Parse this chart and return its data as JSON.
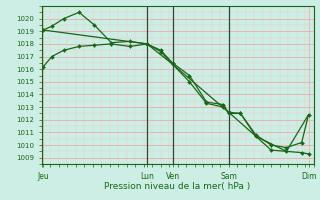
{
  "xlabel": "Pression niveau de la mer( hPa )",
  "background_color": "#cceee4",
  "grid_major_color": "#f0a0a0",
  "grid_minor_color": "#f0c8c8",
  "line_color": "#1a6618",
  "separator_color": "#334433",
  "ylim": [
    1008.5,
    1021.0
  ],
  "xlim": [
    0,
    8.0
  ],
  "yticks": [
    1009,
    1010,
    1011,
    1012,
    1013,
    1014,
    1015,
    1016,
    1017,
    1018,
    1019,
    1020
  ],
  "xtick_positions": [
    0.05,
    3.1,
    3.85,
    5.5,
    7.85
  ],
  "xtick_labels": [
    "Jeu",
    "Lun",
    "Ven",
    "Sam",
    "Dim"
  ],
  "vlines": [
    3.1,
    3.85,
    5.5
  ],
  "line1_x": [
    0.05,
    0.3,
    0.65,
    1.1,
    1.55,
    2.05,
    2.6,
    3.1,
    3.5,
    3.85,
    4.35,
    4.85,
    5.35,
    5.5,
    5.85,
    6.3,
    6.75,
    7.2,
    7.65,
    7.85
  ],
  "line1_y": [
    1019.1,
    1019.4,
    1020.0,
    1020.5,
    1019.5,
    1018.1,
    1018.2,
    1018.0,
    1017.4,
    1016.4,
    1015.0,
    1013.3,
    1013.0,
    1012.6,
    1012.5,
    1010.7,
    1009.6,
    1009.5,
    1009.4,
    1009.3
  ],
  "line2_x": [
    0.05,
    0.3,
    0.65,
    1.1,
    1.55,
    2.05,
    2.6,
    3.1,
    3.5,
    3.85,
    4.35,
    4.85,
    5.35,
    5.5,
    5.85,
    6.3,
    6.75,
    7.2,
    7.65,
    7.85
  ],
  "line2_y": [
    1016.2,
    1017.0,
    1017.5,
    1017.8,
    1017.9,
    1018.0,
    1017.8,
    1018.0,
    1017.5,
    1016.5,
    1015.5,
    1013.4,
    1013.2,
    1012.5,
    1012.5,
    1010.8,
    1010.0,
    1009.8,
    1010.2,
    1012.4
  ],
  "line3_x": [
    0.05,
    3.1,
    3.85,
    5.5,
    6.3,
    7.2,
    7.85
  ],
  "line3_y": [
    1019.1,
    1018.0,
    1016.4,
    1012.6,
    1010.7,
    1009.5,
    1012.4
  ]
}
